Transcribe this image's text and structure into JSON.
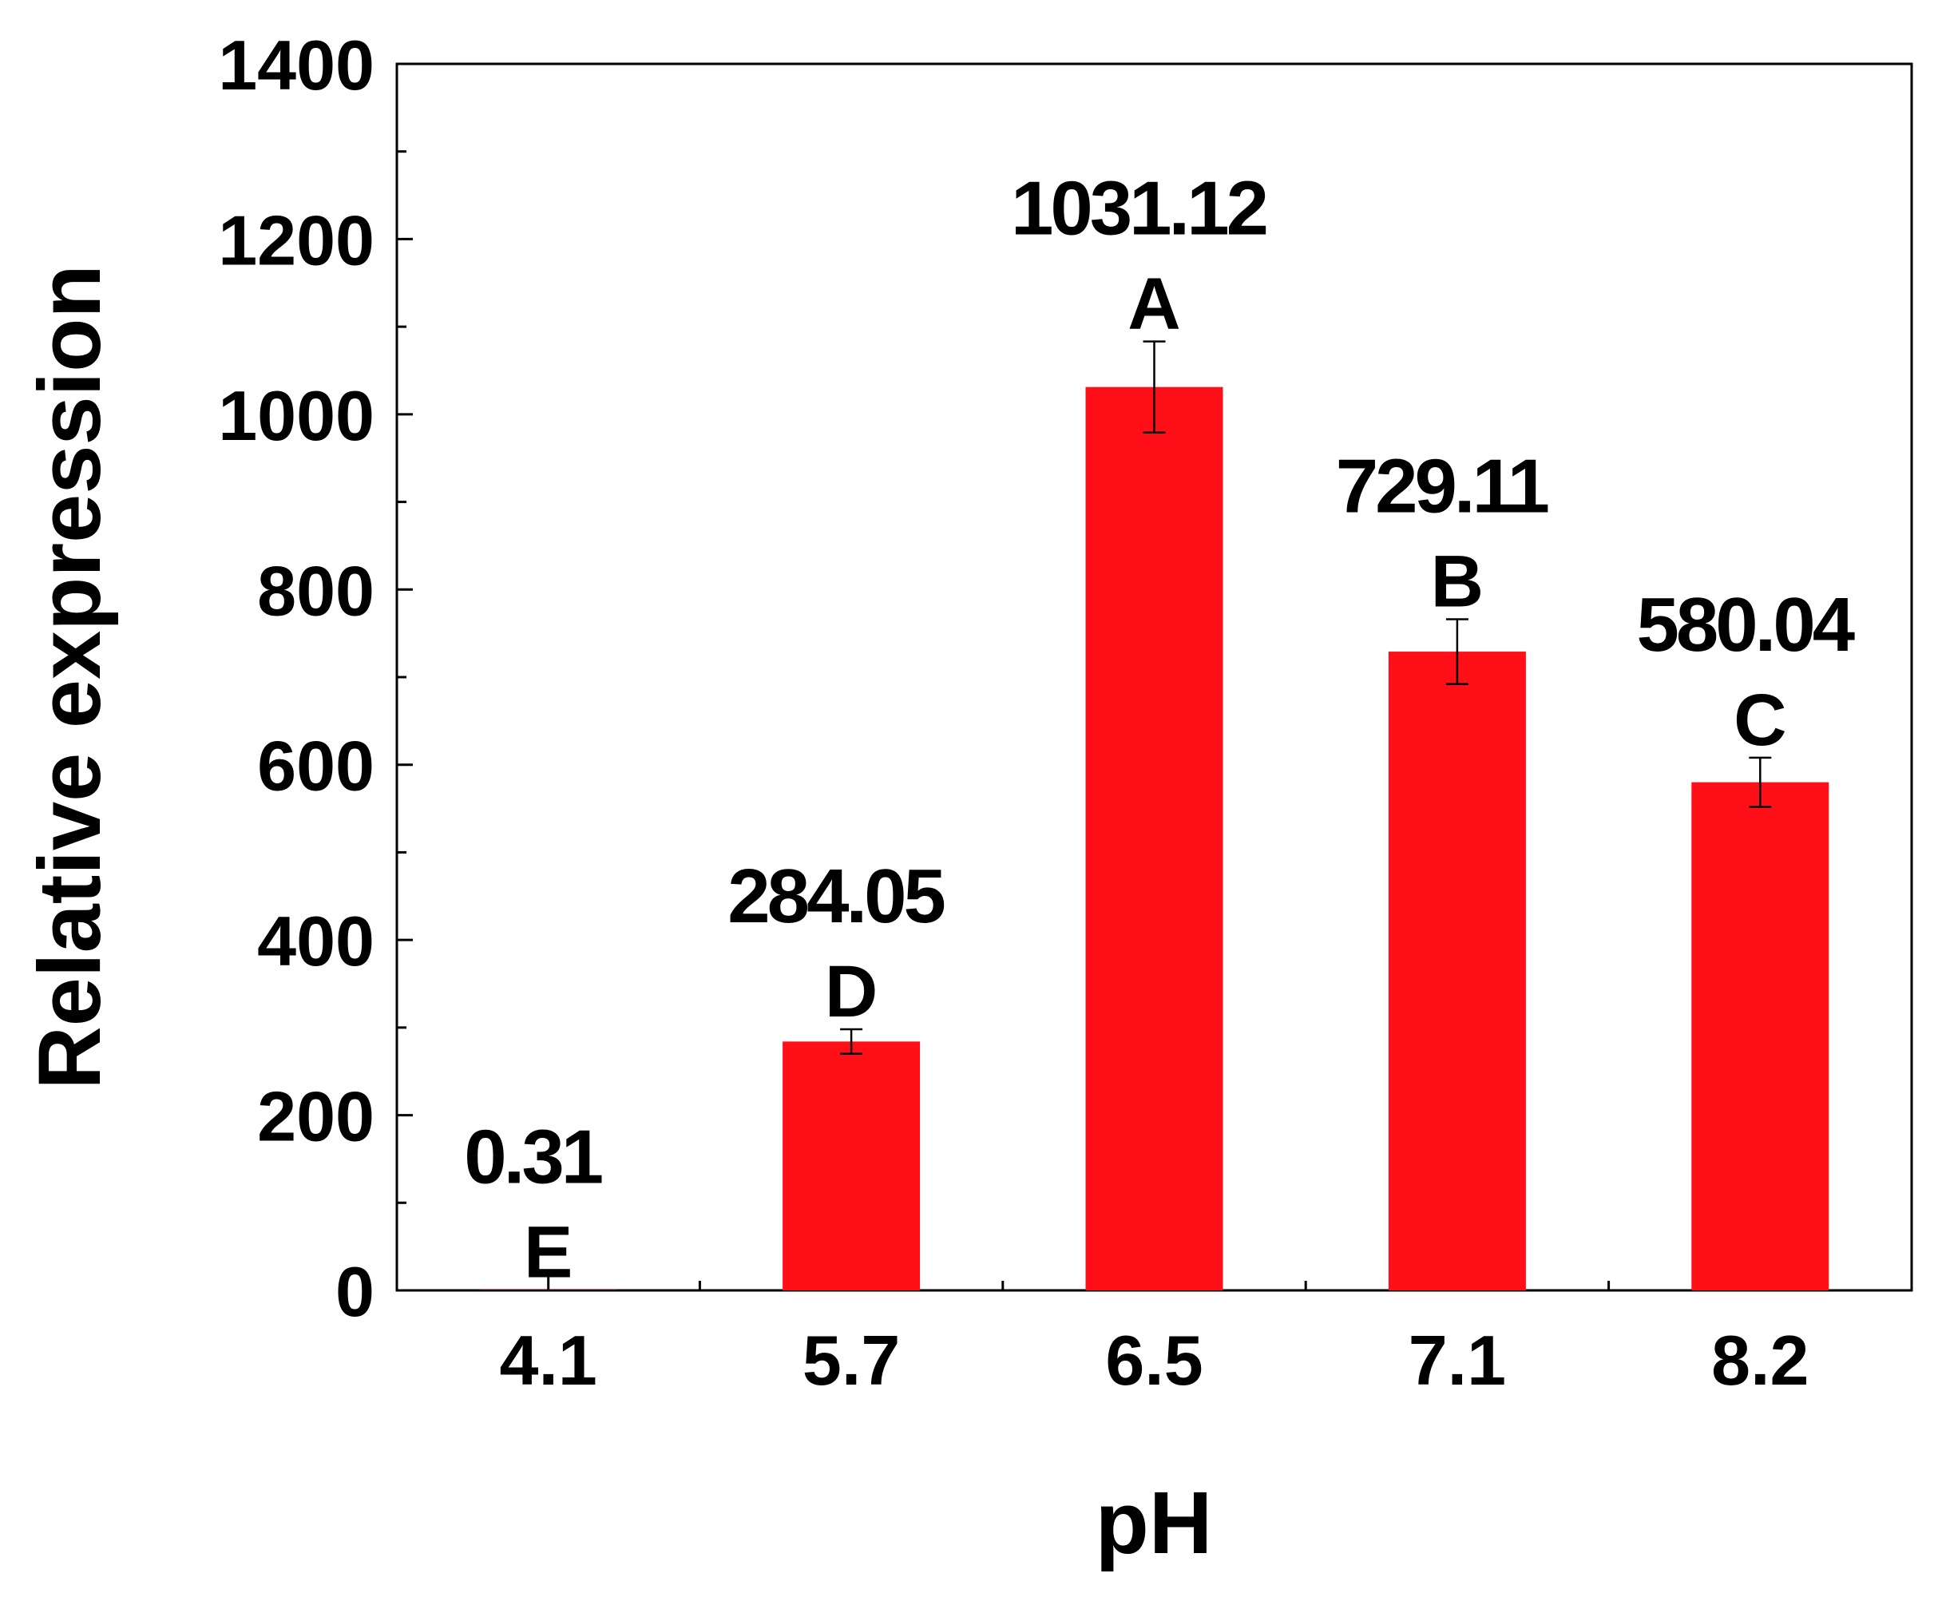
{
  "chart_data": {
    "type": "bar",
    "xlabel": "pH",
    "ylabel": "Relative expression",
    "categories": [
      "4.1",
      "5.7",
      "6.5",
      "7.1",
      "8.2"
    ],
    "values": [
      0.31,
      284.05,
      1031.12,
      729.11,
      580.04
    ],
    "value_labels": [
      "0.31",
      "284.05",
      "1031.12",
      "729.11",
      "580.04"
    ],
    "error": [
      0,
      14,
      52,
      37,
      28
    ],
    "group_letters": [
      "E",
      "D",
      "A",
      "B",
      "C"
    ],
    "ylim": [
      0,
      1400
    ],
    "yticks": [
      0,
      200,
      400,
      600,
      800,
      1000,
      1200,
      1400
    ],
    "grid": false,
    "legend": "none",
    "bar_color": "#ff1019"
  }
}
